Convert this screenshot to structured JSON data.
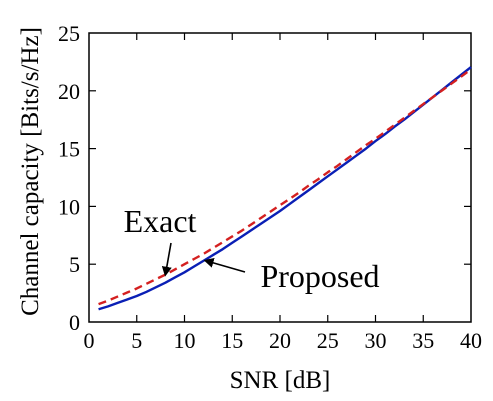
{
  "chart_data": {
    "type": "line",
    "title": "",
    "xlabel": "SNR [dB]",
    "ylabel": "Channel capacity [Bits/s/Hz]",
    "xlim": [
      0,
      40
    ],
    "ylim": [
      0,
      25
    ],
    "grid": false,
    "x_ticks": [
      0,
      5,
      10,
      15,
      20,
      25,
      30,
      35,
      40
    ],
    "x_tick_labels": [
      "0",
      "5",
      "10",
      "15",
      "20",
      "25",
      "30",
      "35",
      "40"
    ],
    "y_ticks": [
      0,
      5,
      10,
      15,
      20,
      25
    ],
    "y_tick_labels": [
      "0",
      "5",
      "10",
      "15",
      "20",
      "25"
    ],
    "series": [
      {
        "name": "Exact",
        "color": "#0a1fb5",
        "style": "solid",
        "x": [
          1,
          2,
          3,
          4,
          5,
          6,
          7,
          8,
          9,
          10,
          11,
          12,
          13,
          14,
          15,
          16,
          17,
          18,
          19,
          20,
          21,
          22,
          23,
          24,
          25,
          26,
          27,
          28,
          29,
          30,
          31,
          32,
          33,
          34,
          35,
          36,
          37,
          38,
          39,
          40
        ],
        "y": [
          1.1,
          1.35,
          1.65,
          1.95,
          2.25,
          2.6,
          3.0,
          3.4,
          3.85,
          4.3,
          4.8,
          5.3,
          5.8,
          6.3,
          6.85,
          7.4,
          7.95,
          8.5,
          9.05,
          9.6,
          10.2,
          10.8,
          11.4,
          12.0,
          12.6,
          13.2,
          13.8,
          14.4,
          15.0,
          15.65,
          16.25,
          16.9,
          17.5,
          18.15,
          18.8,
          19.45,
          20.1,
          20.75,
          21.4,
          22.05
        ]
      },
      {
        "name": "Proposed",
        "color": "#d42020",
        "style": "dashed",
        "x": [
          1,
          2,
          3,
          4,
          5,
          6,
          7,
          8,
          9,
          10,
          11,
          12,
          13,
          14,
          15,
          16,
          17,
          18,
          19,
          20,
          21,
          22,
          23,
          24,
          25,
          26,
          27,
          28,
          29,
          30,
          31,
          32,
          33,
          34,
          35,
          36,
          37,
          38,
          39,
          40
        ],
        "y": [
          1.55,
          1.85,
          2.2,
          2.55,
          2.9,
          3.3,
          3.7,
          4.1,
          4.55,
          5.0,
          5.45,
          5.9,
          6.4,
          6.9,
          7.4,
          7.9,
          8.45,
          9.0,
          9.55,
          10.1,
          10.65,
          11.2,
          11.8,
          12.35,
          12.95,
          13.5,
          14.1,
          14.7,
          15.3,
          15.85,
          16.45,
          17.05,
          17.65,
          18.25,
          18.85,
          19.45,
          20.05,
          20.65,
          21.25,
          21.85
        ]
      }
    ],
    "annotations": [
      {
        "text": "Exact",
        "series": "Exact",
        "arrow_to_x": 8.0
      },
      {
        "text": "Proposed",
        "series": "Proposed",
        "arrow_to_x": 12.2
      }
    ]
  }
}
